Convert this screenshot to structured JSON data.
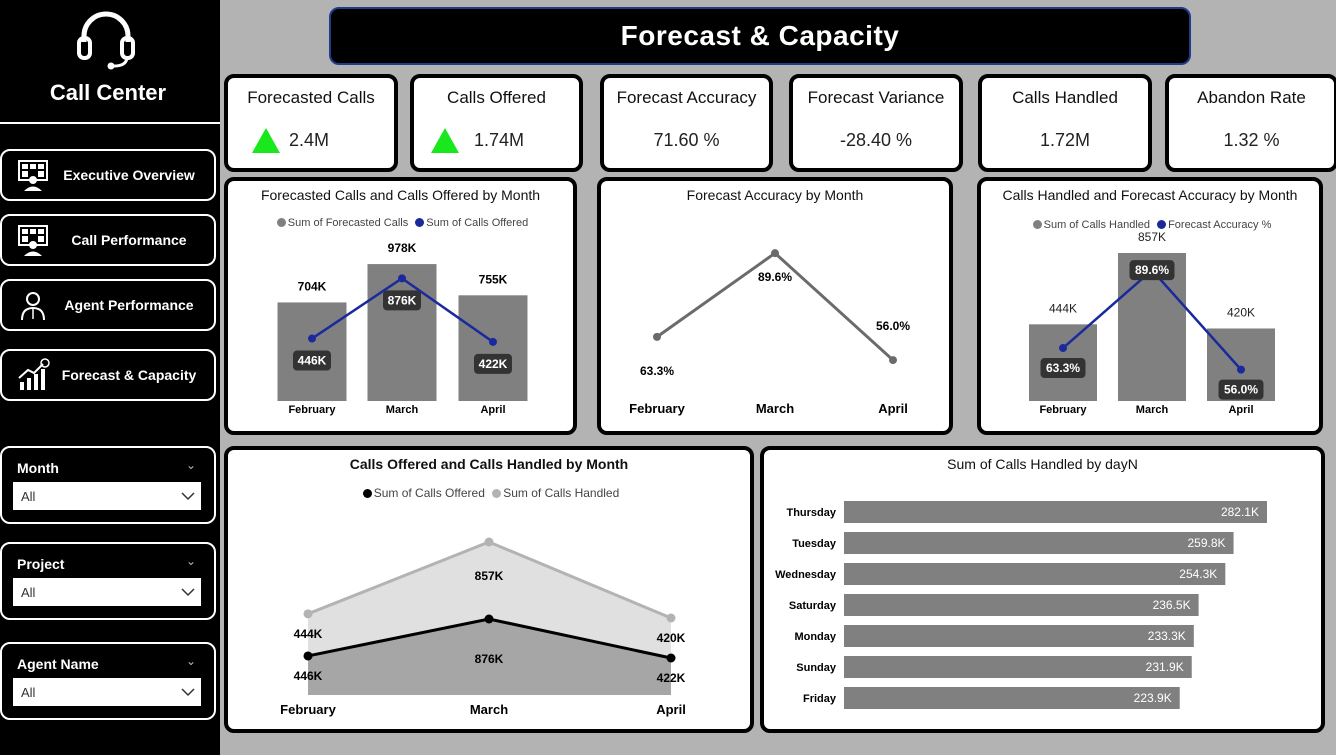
{
  "sidebar": {
    "brand_title": "Call Center",
    "brand_icon": "headset-icon",
    "nav": [
      {
        "label": "Executive Overview",
        "icon": "executive-dashboard-icon"
      },
      {
        "label": "Call Performance",
        "icon": "call-performance-icon"
      },
      {
        "label": "Agent Performance",
        "icon": "agent-icon"
      },
      {
        "label": "Forecast & Capacity",
        "icon": "growth-chart-icon"
      }
    ],
    "slicers": [
      {
        "title": "Month",
        "value": "All"
      },
      {
        "title": "Project",
        "value": "All"
      },
      {
        "title": "Agent Name",
        "value": "All"
      }
    ]
  },
  "header": {
    "title": "Forecast & Capacity"
  },
  "kpis": [
    {
      "title": "Forecasted Calls",
      "value": "2.4M",
      "trend": "up"
    },
    {
      "title": "Calls Offered",
      "value": "1.74M",
      "trend": "up"
    },
    {
      "title": "Forecast Accuracy",
      "value": "71.60 %"
    },
    {
      "title": "Forecast Variance",
      "value": "-28.40 %"
    },
    {
      "title": "Calls Handled",
      "value": "1.72M"
    },
    {
      "title": "Abandon Rate",
      "value": "1.32 %"
    }
  ],
  "colors": {
    "up_arrow": "#19e81d",
    "bar_gray": "#808080",
    "line_blue": "#1a2a9c",
    "area_light": "#e0e0e0",
    "area_dark": "#a6a6a6"
  },
  "chart_data": [
    {
      "type": "bar",
      "title": "Forecasted Calls and Calls Offered by Month",
      "categories": [
        "February",
        "March",
        "April"
      ],
      "series": [
        {
          "name": "Sum of Forecasted Calls",
          "kind": "bar",
          "values": [
            704000,
            978000,
            755000
          ],
          "labels": [
            "704K",
            "978K",
            "755K"
          ]
        },
        {
          "name": "Sum of Calls Offered",
          "kind": "line",
          "values": [
            446000,
            876000,
            422000
          ],
          "labels": [
            "446K",
            "876K",
            "422K"
          ]
        }
      ]
    },
    {
      "type": "line",
      "title": "Forecast Accuracy by Month",
      "categories": [
        "February",
        "March",
        "April"
      ],
      "series": [
        {
          "values": [
            63.3,
            89.6,
            56.0
          ],
          "labels": [
            "63.3%",
            "89.6%",
            "56.0%"
          ]
        }
      ]
    },
    {
      "type": "bar",
      "title": "Calls Handled and Forecast Accuracy by Month",
      "categories": [
        "February",
        "March",
        "April"
      ],
      "series": [
        {
          "name": "Sum of Calls Handled",
          "kind": "bar",
          "values": [
            444000,
            857000,
            420000
          ],
          "labels": [
            "444K",
            "857K",
            "420K"
          ]
        },
        {
          "name": "Forecast Accuracy %",
          "kind": "line",
          "values": [
            63.3,
            89.6,
            56.0
          ],
          "labels": [
            "63.3%",
            "89.6%",
            "56.0%"
          ]
        }
      ]
    },
    {
      "type": "area",
      "title": "Calls Offered and Calls Handled by Month",
      "categories": [
        "February",
        "March",
        "April"
      ],
      "series": [
        {
          "name": "Sum of Calls Offered",
          "values": [
            446000,
            876000,
            422000
          ],
          "labels": [
            "446K",
            "876K",
            "422K"
          ]
        },
        {
          "name": "Sum of Calls Handled",
          "values": [
            444000,
            857000,
            420000
          ],
          "labels": [
            "444K",
            "857K",
            "420K"
          ]
        }
      ]
    },
    {
      "type": "bar",
      "orientation": "horizontal",
      "title": "Sum of Calls Handled by dayN",
      "categories": [
        "Thursday",
        "Tuesday",
        "Wednesday",
        "Saturday",
        "Monday",
        "Sunday",
        "Friday"
      ],
      "values": [
        282.1,
        259.8,
        254.3,
        236.5,
        233.3,
        231.9,
        223.9
      ],
      "labels": [
        "282.1K",
        "259.8K",
        "254.3K",
        "236.5K",
        "233.3K",
        "231.9K",
        "223.9K"
      ]
    }
  ]
}
